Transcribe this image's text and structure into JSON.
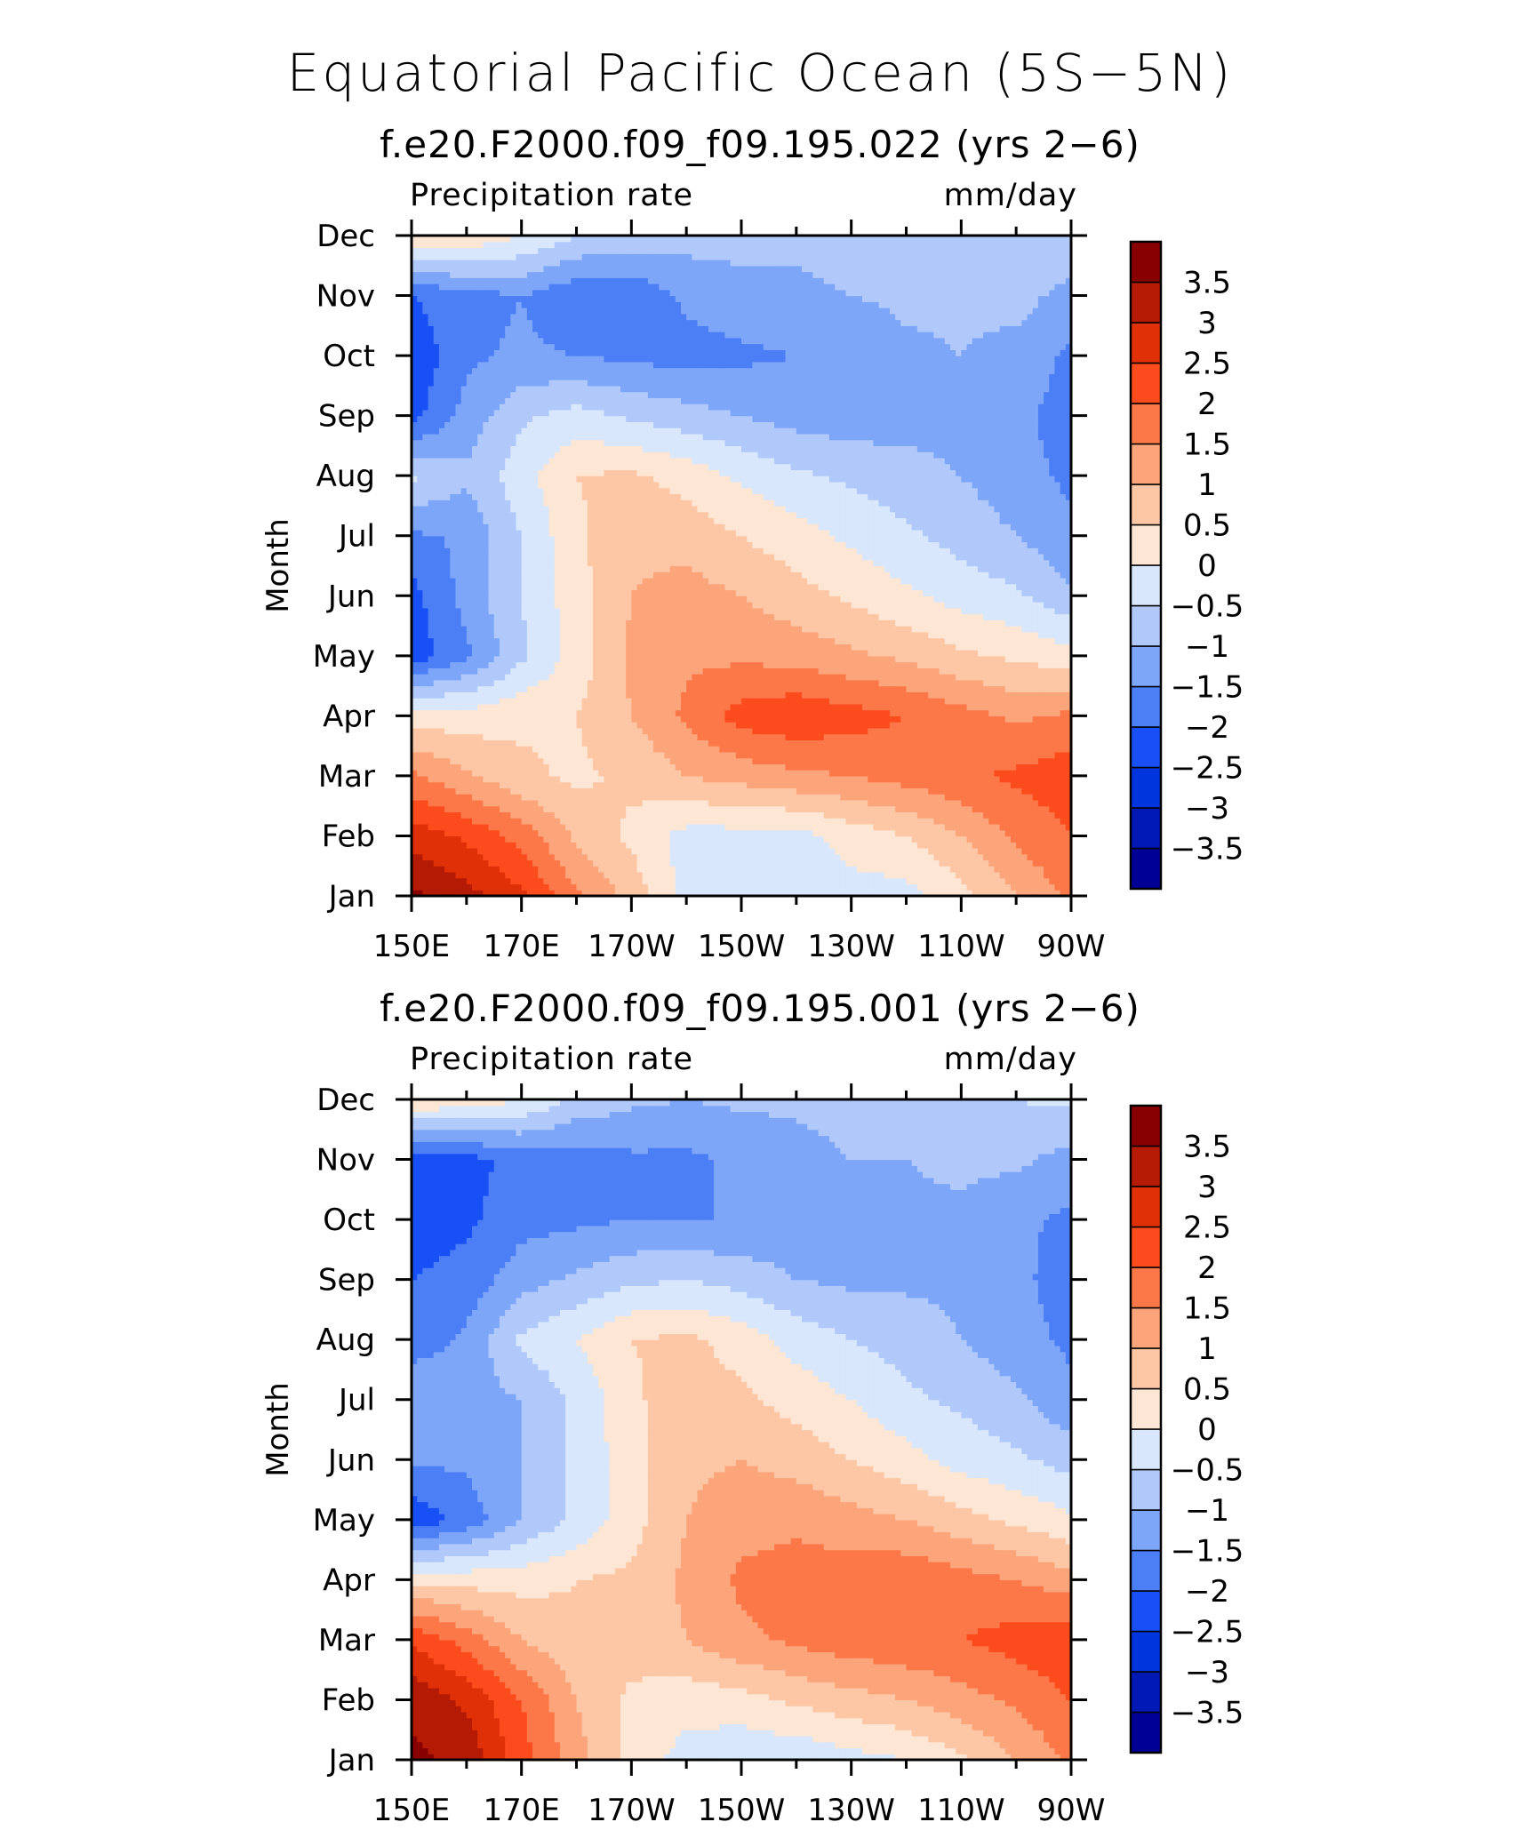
{
  "title": "Equatorial Pacific Ocean (5S−5N)",
  "chart_data": [
    {
      "type": "heatmap",
      "subtitle": "f.e20.F2000.f09_f09.195.022 (yrs 2−6)",
      "left_string": "Precipitation rate",
      "right_string": "mm/day",
      "ylabel": "Month",
      "x_ticks": [
        "150E",
        "170E",
        "170W",
        "150W",
        "130W",
        "110W",
        "90W"
      ],
      "x_values": [
        150,
        170,
        190,
        210,
        230,
        250,
        270
      ],
      "y_ticks": [
        "Jan",
        "Feb",
        "Mar",
        "Apr",
        "May",
        "Jun",
        "Jul",
        "Aug",
        "Sep",
        "Oct",
        "Nov",
        "Dec"
      ],
      "colorbar_labels": [
        "3.5",
        "3",
        "2.5",
        "2",
        "1.5",
        "1",
        "0.5",
        "0",
        "−0.5",
        "−1",
        "−1.5",
        "−2",
        "−2.5",
        "−3",
        "−3.5"
      ],
      "grid_x": [
        150,
        160,
        170,
        180,
        190,
        200,
        210,
        220,
        230,
        240,
        250,
        260,
        270
      ],
      "z": [
        [
          3.6,
          3.2,
          2.6,
          1.6,
          0.8,
          -0.2,
          -0.4,
          -0.4,
          -0.2,
          -0.2,
          0.3,
          1.0,
          1.6
        ],
        [
          2.8,
          2.4,
          1.8,
          0.9,
          0.4,
          -0.2,
          -0.2,
          -0.2,
          0.2,
          0.5,
          1.0,
          1.6,
          2.0
        ],
        [
          1.6,
          1.1,
          0.6,
          0.4,
          0.6,
          1.0,
          1.2,
          1.4,
          1.5,
          1.7,
          1.9,
          2.1,
          2.3
        ],
        [
          0.3,
          0.2,
          0.4,
          0.5,
          1.0,
          1.6,
          2.2,
          2.4,
          2.2,
          2.0,
          1.7,
          1.4,
          1.6
        ],
        [
          -2.3,
          -1.6,
          -0.6,
          0.2,
          1.1,
          1.4,
          1.4,
          1.3,
          1.1,
          0.9,
          0.6,
          0.4,
          0.2
        ],
        [
          -2.2,
          -1.3,
          -0.5,
          0.3,
          1.0,
          1.2,
          1.0,
          0.7,
          0.4,
          0.1,
          -0.2,
          -0.4,
          -0.9
        ],
        [
          -1.6,
          -1.4,
          -0.5,
          0.4,
          0.9,
          0.8,
          0.5,
          0.2,
          -0.1,
          -0.4,
          -0.7,
          -1.0,
          -1.4
        ],
        [
          -0.4,
          -0.9,
          -0.2,
          0.5,
          0.6,
          0.3,
          -0.1,
          -0.4,
          -0.6,
          -0.8,
          -1.0,
          -1.3,
          -1.6
        ],
        [
          -2.2,
          -1.3,
          -0.6,
          -0.3,
          -0.6,
          -0.8,
          -1.0,
          -1.2,
          -1.3,
          -1.2,
          -1.2,
          -1.4,
          -1.7
        ],
        [
          -2.4,
          -1.6,
          -1.4,
          -1.5,
          -1.6,
          -1.7,
          -1.6,
          -1.5,
          -1.4,
          -1.1,
          -1.0,
          -1.2,
          -1.6
        ],
        [
          -2.0,
          -1.7,
          -1.5,
          -1.9,
          -1.9,
          -1.4,
          -1.2,
          -1.1,
          -1.0,
          -0.9,
          -0.9,
          -0.8,
          -1.2
        ],
        [
          0.6,
          0.4,
          0.0,
          -0.5,
          -0.7,
          -0.8,
          -0.8,
          -0.9,
          -0.8,
          -0.8,
          -0.7,
          -0.6,
          -0.5
        ]
      ]
    },
    {
      "type": "heatmap",
      "subtitle": "f.e20.F2000.f09_f09.195.001 (yrs 2−6)",
      "left_string": "Precipitation rate",
      "right_string": "mm/day",
      "ylabel": "Month",
      "x_ticks": [
        "150E",
        "170E",
        "170W",
        "150W",
        "130W",
        "110W",
        "90W"
      ],
      "x_values": [
        150,
        170,
        190,
        210,
        230,
        250,
        270
      ],
      "y_ticks": [
        "Jan",
        "Feb",
        "Mar",
        "Apr",
        "May",
        "Jun",
        "Jul",
        "Aug",
        "Sep",
        "Oct",
        "Nov",
        "Dec"
      ],
      "colorbar_labels": [
        "3.5",
        "3",
        "2.5",
        "2",
        "1.5",
        "1",
        "0.5",
        "0",
        "−0.5",
        "−1",
        "−1.5",
        "−2",
        "−2.5",
        "−3",
        "−3.5"
      ],
      "grid_x": [
        150,
        160,
        170,
        180,
        190,
        200,
        210,
        220,
        230,
        240,
        250,
        260,
        270
      ],
      "z": [
        [
          3.6,
          3.4,
          2.2,
          1.2,
          0.3,
          -0.2,
          -0.4,
          -0.4,
          -0.2,
          0.0,
          0.4,
          1.0,
          1.6
        ],
        [
          3.4,
          2.9,
          2.0,
          1.0,
          0.4,
          0.2,
          0.3,
          0.6,
          0.8,
          1.0,
          1.3,
          1.6,
          2.0
        ],
        [
          2.4,
          1.8,
          1.0,
          0.6,
          0.7,
          1.0,
          1.4,
          1.6,
          1.8,
          1.9,
          2.0,
          2.2,
          2.4
        ],
        [
          0.4,
          0.3,
          0.3,
          0.5,
          0.6,
          1.1,
          1.6,
          1.7,
          1.8,
          1.9,
          1.7,
          1.5,
          1.2
        ],
        [
          -2.4,
          -1.8,
          -1.0,
          -0.4,
          0.3,
          1.0,
          1.3,
          1.4,
          1.2,
          1.0,
          0.7,
          0.4,
          0.1
        ],
        [
          -1.4,
          -1.4,
          -1.0,
          -0.4,
          0.3,
          0.9,
          1.0,
          0.8,
          0.5,
          0.2,
          -0.2,
          -0.4,
          -0.7
        ],
        [
          -1.0,
          -1.2,
          -1.0,
          -0.4,
          0.4,
          0.8,
          0.6,
          0.3,
          0.0,
          -0.4,
          -0.6,
          -0.9,
          -1.4
        ],
        [
          -1.8,
          -1.4,
          -0.4,
          0.0,
          0.5,
          0.6,
          0.3,
          -0.2,
          -0.5,
          -0.7,
          -1.0,
          -1.3,
          -1.6
        ],
        [
          -2.0,
          -1.8,
          -1.2,
          -0.9,
          -0.6,
          -0.5,
          -0.7,
          -1.0,
          -1.1,
          -1.1,
          -1.1,
          -1.4,
          -1.7
        ],
        [
          -2.3,
          -2.1,
          -1.7,
          -1.6,
          -1.5,
          -1.5,
          -1.5,
          -1.3,
          -1.2,
          -1.1,
          -1.1,
          -1.4,
          -1.6
        ],
        [
          -2.4,
          -2.2,
          -1.8,
          -1.8,
          -1.6,
          -1.6,
          -1.4,
          -1.2,
          -1.0,
          -1.0,
          -0.9,
          -0.9,
          -1.2
        ],
        [
          0.5,
          0.3,
          0.0,
          -0.6,
          -0.9,
          -1.0,
          -0.9,
          -0.9,
          -0.8,
          -0.7,
          -0.6,
          -0.5,
          -0.4
        ]
      ]
    }
  ],
  "colorbar": {
    "levels": [
      -3.5,
      -3,
      -2.5,
      -2,
      -1.5,
      -1,
      -0.5,
      0,
      0.5,
      1,
      1.5,
      2,
      2.5,
      3,
      3.5
    ],
    "colors": [
      "#000096",
      "#0018b4",
      "#0034dc",
      "#1850f6",
      "#4c7ef6",
      "#7ea6f8",
      "#b0c9fa",
      "#d8e7fc",
      "#fde6d4",
      "#fdc7a6",
      "#fca47a",
      "#fd7848",
      "#fc4c1e",
      "#e03008",
      "#b41a04",
      "#880000"
    ]
  }
}
